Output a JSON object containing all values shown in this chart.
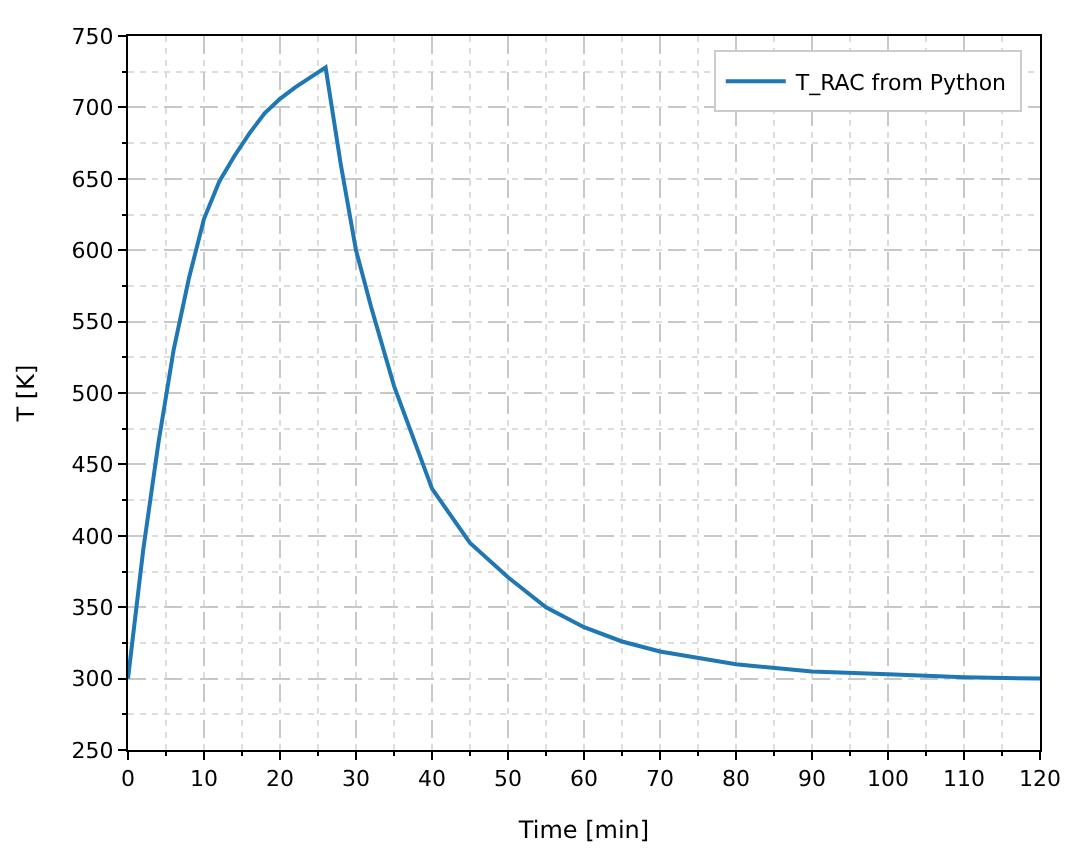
{
  "chart_data": {
    "type": "line",
    "xlabel": "Time [min]",
    "ylabel": "T [K]",
    "x": [
      0,
      2,
      4,
      6,
      8,
      10,
      12,
      14,
      16,
      18,
      20,
      22,
      24,
      26,
      28,
      30,
      32,
      35,
      40,
      45,
      50,
      55,
      60,
      65,
      70,
      80,
      90,
      100,
      110,
      120
    ],
    "series": [
      {
        "name": "T_RAC from Python",
        "color": "#1f77b4",
        "values": [
          300,
          390,
          465,
          530,
          580,
          622,
          648,
          666,
          682,
          696,
          706,
          714,
          721,
          728,
          660,
          600,
          560,
          505,
          433,
          395,
          371,
          350,
          336,
          326,
          319,
          310,
          305,
          303,
          301,
          300
        ]
      }
    ],
    "xlim": [
      0,
      120
    ],
    "xticks": [
      0,
      10,
      20,
      30,
      40,
      50,
      60,
      70,
      80,
      90,
      100,
      110,
      120
    ],
    "ylim": [
      250,
      750
    ],
    "yticks": [
      250,
      300,
      350,
      400,
      450,
      500,
      550,
      600,
      650,
      700,
      750
    ],
    "grid": true,
    "legend": "top right",
    "marker": "none",
    "line_style": "solid"
  }
}
